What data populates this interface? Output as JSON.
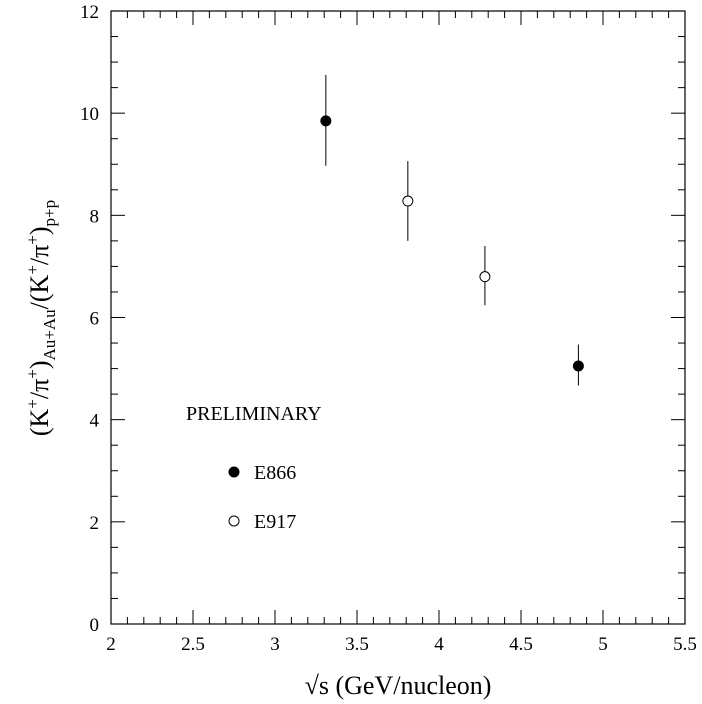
{
  "chart_data": {
    "type": "scatter",
    "xlabel": "√s (GeV/nucleon)",
    "ylabel": {
      "base": "(K",
      "sup1": "+",
      "mid1": "/π",
      "sup2": "+",
      "mid2": ")",
      "sub1": "Au+Au",
      "mid3": "/(K",
      "sup3": "+",
      "mid4": "/π",
      "sup4": "+",
      "mid5": ")",
      "sub2": "p+p"
    },
    "xlim": [
      2,
      5.5
    ],
    "ylim": [
      0,
      12
    ],
    "xticks": [
      "2",
      "2.5",
      "3",
      "3.5",
      "4",
      "4.5",
      "5",
      "5.5"
    ],
    "yticks": [
      "0",
      "2",
      "4",
      "6",
      "8",
      "10",
      "12"
    ],
    "annotation": "PRELIMINARY",
    "series": [
      {
        "name": "E866",
        "marker": "filled-circle",
        "color": "#000000",
        "points": [
          {
            "x": 3.31,
            "y": 9.85,
            "err_lo": 0.88,
            "err_hi": 0.9
          },
          {
            "x": 4.85,
            "y": 5.05,
            "err_lo": 0.38,
            "err_hi": 0.42
          }
        ]
      },
      {
        "name": "E917",
        "marker": "open-circle",
        "color": "#000000",
        "points": [
          {
            "x": 3.81,
            "y": 8.28,
            "err_lo": 0.78,
            "err_hi": 0.78
          },
          {
            "x": 4.28,
            "y": 6.8,
            "err_lo": 0.56,
            "err_hi": 0.6
          }
        ]
      }
    ],
    "grid": false,
    "legend_placement": "lower-left"
  }
}
